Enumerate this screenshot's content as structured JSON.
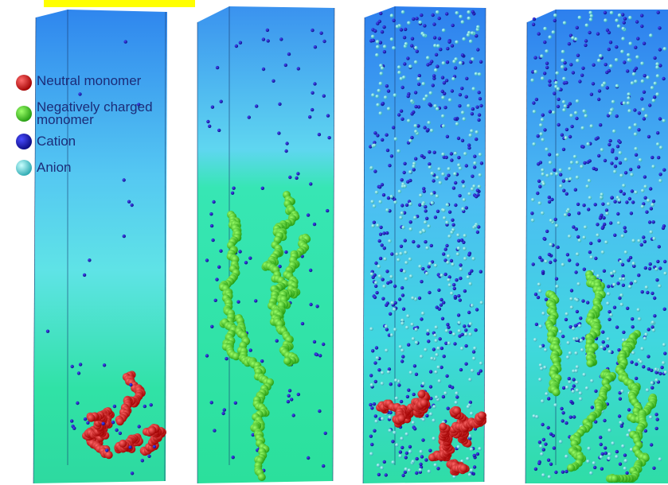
{
  "legend": {
    "items": [
      {
        "label": "Neutral monomer"
      },
      {
        "label": "Negatively charged monomer"
      },
      {
        "label": "Cation"
      },
      {
        "label": "Anion"
      }
    ]
  }
}
